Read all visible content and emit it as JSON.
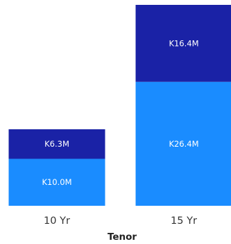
{
  "chart_data": {
    "type": "bar",
    "stacked": true,
    "categories": [
      "10 Yr",
      "15 Yr"
    ],
    "series": [
      {
        "values": [
          10.0,
          26.4
        ],
        "labels": [
          "K10.0M",
          "K26.4M"
        ],
        "color": "#1a8cff"
      },
      {
        "values": [
          6.3,
          16.4
        ],
        "labels": [
          "K6.3M",
          "K16.4M"
        ],
        "color": "#1a22a6"
      }
    ],
    "xlabel": "Tenor",
    "ylabel": "",
    "ylim": [
      0,
      42.8
    ],
    "grid": false,
    "legend": "none"
  }
}
